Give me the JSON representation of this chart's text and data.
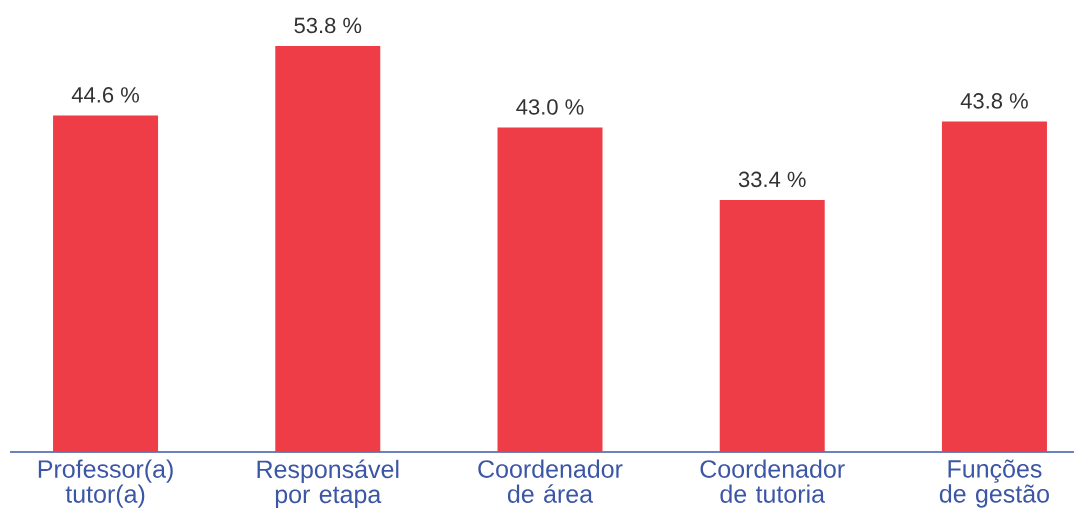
{
  "chart_data": {
    "type": "bar",
    "categories": [
      "Professor(a) tutor(a)",
      "Responsável por etapa",
      "Coordenador de área",
      "Coordenador de tutoria",
      "Funções de gestão"
    ],
    "values": [
      44.6,
      53.8,
      43.0,
      33.4,
      43.8
    ],
    "value_labels": [
      "44.6 %",
      "53.8 %",
      "43.0 %",
      "33.4 %",
      "43.8 %"
    ],
    "color": "#ef3d47",
    "tick_labels": "x"
  }
}
